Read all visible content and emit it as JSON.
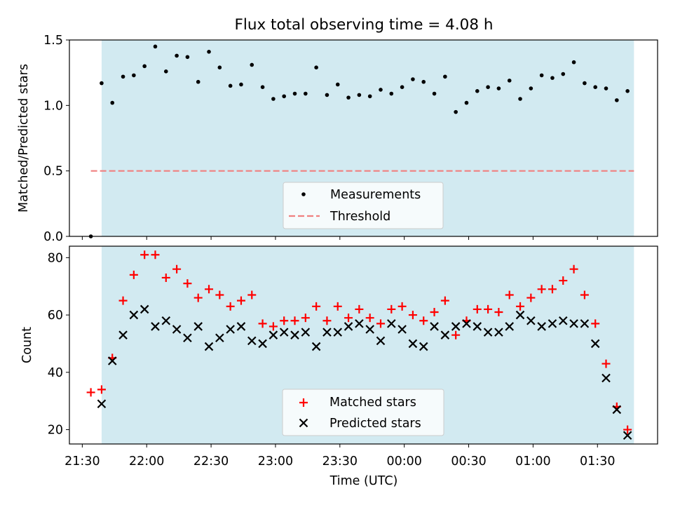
{
  "colors": {
    "shade": "#add8e6",
    "measurement": "#000000",
    "threshold": "#f08080",
    "matched": "#ff0000",
    "predicted": "#000000"
  },
  "chart_data": [
    {
      "type": "scatter",
      "title": "Flux total observing time = 4.08 h",
      "xlabel": "",
      "ylabel": "Matched/Predicted stars",
      "ylim": [
        0,
        1.5
      ],
      "yticks": [
        "0.0",
        "0.5",
        "1.0",
        "1.5"
      ],
      "xrange": [
        "21:24",
        "01:58"
      ],
      "shaded_interval": [
        "21:39",
        "01:47"
      ],
      "threshold": {
        "name": "Threshold",
        "value": 0.5,
        "range": [
          "21:34",
          "01:47"
        ]
      },
      "legend": {
        "position": "lower-center",
        "entries": [
          "Measurements",
          "Threshold"
        ]
      },
      "series": [
        {
          "name": "Measurements",
          "x": [
            "21:34",
            "21:39",
            "21:44",
            "21:49",
            "21:54",
            "21:59",
            "22:04",
            "22:09",
            "22:14",
            "22:19",
            "22:24",
            "22:29",
            "22:34",
            "22:39",
            "22:44",
            "22:49",
            "22:54",
            "22:59",
            "23:04",
            "23:09",
            "23:14",
            "23:19",
            "23:24",
            "23:29",
            "23:34",
            "23:39",
            "23:44",
            "23:49",
            "23:54",
            "23:59",
            "00:04",
            "00:09",
            "00:14",
            "00:19",
            "00:24",
            "00:29",
            "00:34",
            "00:39",
            "00:44",
            "00:49",
            "00:54",
            "00:59",
            "01:04",
            "01:09",
            "01:14",
            "01:19",
            "01:24",
            "01:29",
            "01:34",
            "01:39",
            "01:44"
          ],
          "y": [
            0.0,
            1.17,
            1.02,
            1.22,
            1.23,
            1.3,
            1.45,
            1.26,
            1.38,
            1.37,
            1.18,
            1.41,
            1.29,
            1.15,
            1.16,
            1.31,
            1.14,
            1.05,
            1.07,
            1.09,
            1.09,
            1.29,
            1.08,
            1.16,
            1.06,
            1.08,
            1.07,
            1.12,
            1.09,
            1.14,
            1.2,
            1.18,
            1.09,
            1.22,
            0.95,
            1.02,
            1.11,
            1.14,
            1.13,
            1.19,
            1.05,
            1.13,
            1.23,
            1.21,
            1.24,
            1.33,
            1.17,
            1.14,
            1.13,
            1.04,
            1.11
          ]
        }
      ]
    },
    {
      "type": "scatter",
      "title": "",
      "xlabel": "Time (UTC)",
      "ylabel": "Count",
      "ylim": [
        15,
        84
      ],
      "yticks": [
        "20",
        "40",
        "60",
        "80"
      ],
      "xrange": [
        "21:24",
        "01:58"
      ],
      "xticks": [
        "21:30",
        "22:00",
        "22:30",
        "23:00",
        "23:30",
        "00:00",
        "00:30",
        "01:00",
        "01:30"
      ],
      "shaded_interval": [
        "21:39",
        "01:47"
      ],
      "legend": {
        "position": "lower-center",
        "entries": [
          "Matched stars",
          "Predicted stars"
        ]
      },
      "series": [
        {
          "name": "Matched stars",
          "marker": "+",
          "x": [
            "21:34",
            "21:39",
            "21:44",
            "21:49",
            "21:54",
            "21:59",
            "22:04",
            "22:09",
            "22:14",
            "22:19",
            "22:24",
            "22:29",
            "22:34",
            "22:39",
            "22:44",
            "22:49",
            "22:54",
            "22:59",
            "23:04",
            "23:09",
            "23:14",
            "23:19",
            "23:24",
            "23:29",
            "23:34",
            "23:39",
            "23:44",
            "23:49",
            "23:54",
            "23:59",
            "00:04",
            "00:09",
            "00:14",
            "00:19",
            "00:24",
            "00:29",
            "00:34",
            "00:39",
            "00:44",
            "00:49",
            "00:54",
            "00:59",
            "01:04",
            "01:09",
            "01:14",
            "01:19",
            "01:24",
            "01:29",
            "01:34",
            "01:39",
            "01:44"
          ],
          "y": [
            33,
            34,
            45,
            65,
            74,
            81,
            81,
            73,
            76,
            71,
            66,
            69,
            67,
            63,
            65,
            67,
            57,
            56,
            58,
            58,
            59,
            63,
            58,
            63,
            59,
            62,
            59,
            57,
            62,
            63,
            60,
            58,
            61,
            65,
            53,
            58,
            62,
            62,
            61,
            67,
            63,
            66,
            69,
            69,
            72,
            76,
            67,
            57,
            43,
            28,
            20
          ]
        },
        {
          "name": "Predicted stars",
          "marker": "x",
          "x": [
            "21:39",
            "21:44",
            "21:49",
            "21:54",
            "21:59",
            "22:04",
            "22:09",
            "22:14",
            "22:19",
            "22:24",
            "22:29",
            "22:34",
            "22:39",
            "22:44",
            "22:49",
            "22:54",
            "22:59",
            "23:04",
            "23:09",
            "23:14",
            "23:19",
            "23:24",
            "23:29",
            "23:34",
            "23:39",
            "23:44",
            "23:49",
            "23:54",
            "23:59",
            "00:04",
            "00:09",
            "00:14",
            "00:19",
            "00:24",
            "00:29",
            "00:34",
            "00:39",
            "00:44",
            "00:49",
            "00:54",
            "00:59",
            "01:04",
            "01:09",
            "01:14",
            "01:19",
            "01:24",
            "01:29",
            "01:34",
            "01:39",
            "01:44"
          ],
          "y": [
            29,
            44,
            53,
            60,
            62,
            56,
            58,
            55,
            52,
            56,
            49,
            52,
            55,
            56,
            51,
            50,
            53,
            54,
            53,
            54,
            49,
            54,
            54,
            56,
            57,
            55,
            51,
            57,
            55,
            50,
            49,
            56,
            53,
            56,
            57,
            56,
            54,
            54,
            56,
            60,
            58,
            56,
            57,
            58,
            57,
            57,
            50,
            38,
            27,
            18
          ]
        }
      ]
    }
  ]
}
